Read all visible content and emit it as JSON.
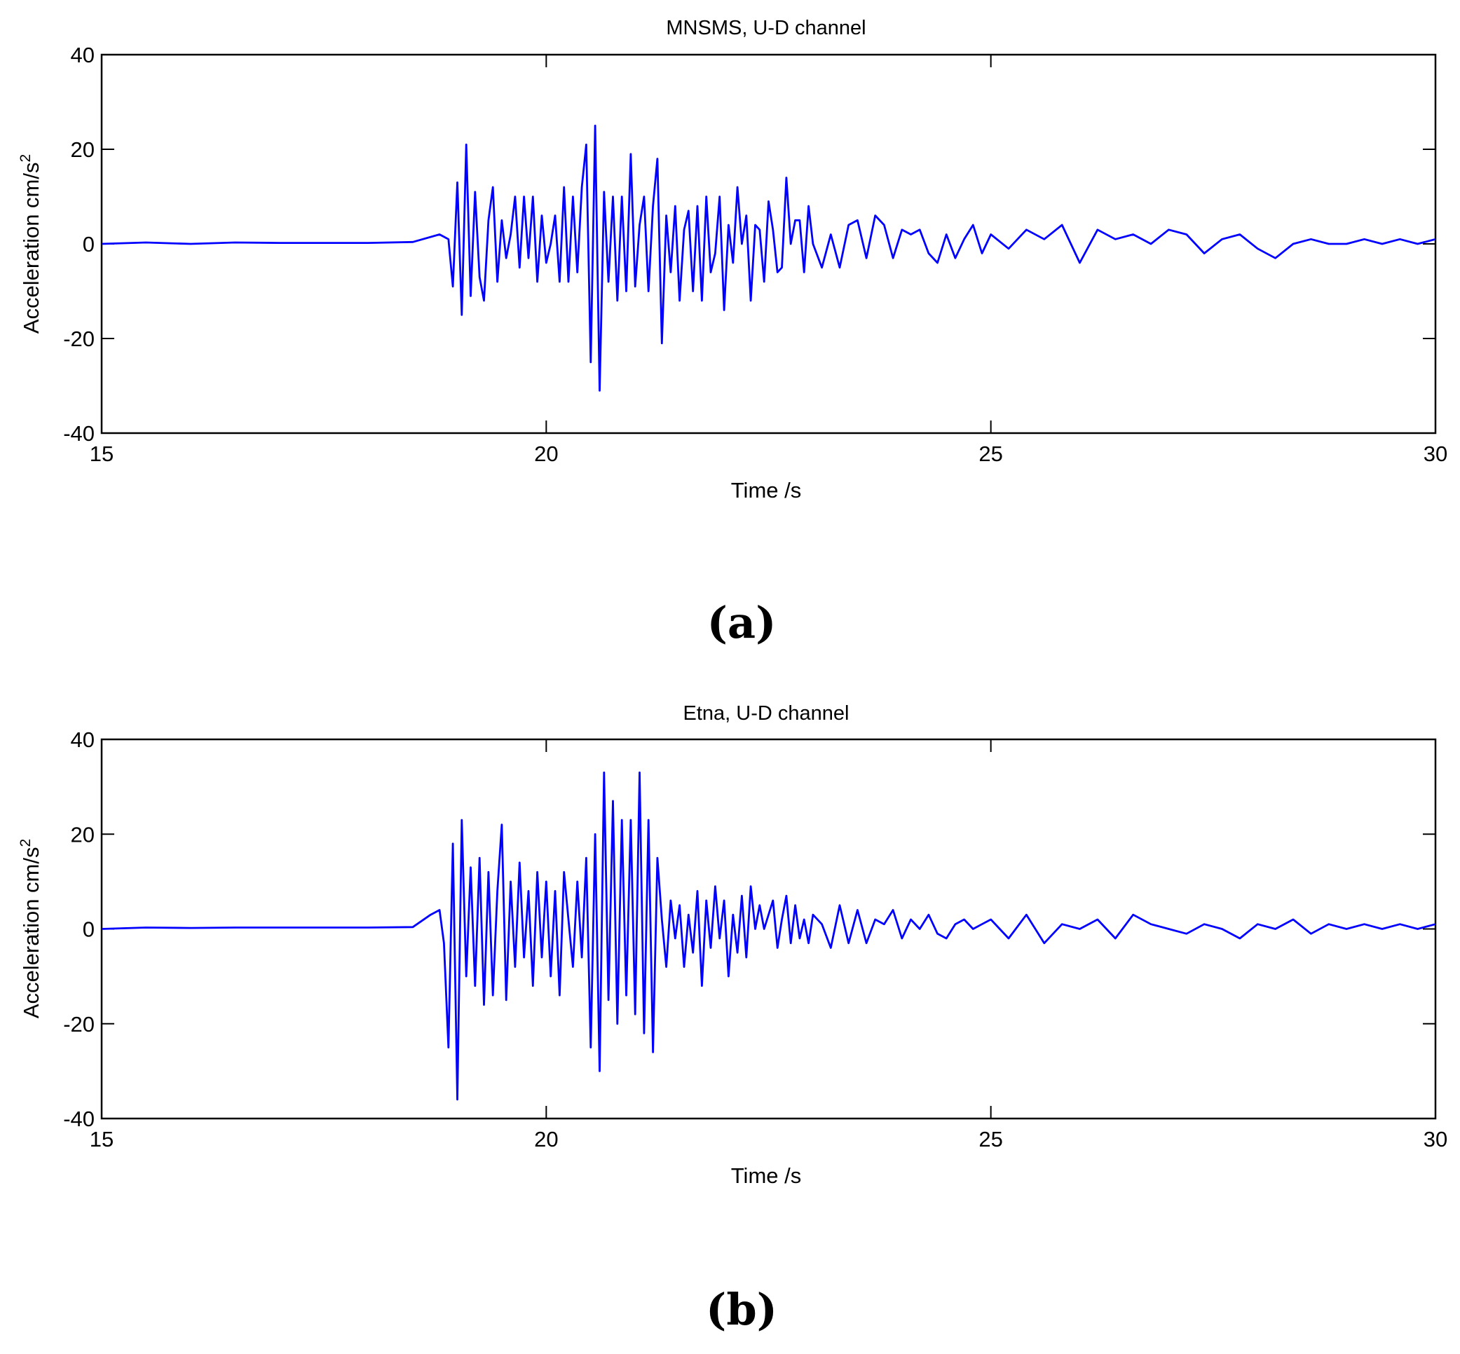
{
  "figure": {
    "trace_color": "#0000FF",
    "panels": [
      {
        "letter_open": "(",
        "letter": "a",
        "letter_close": ")"
      },
      {
        "letter_open": "(",
        "letter": "b",
        "letter_close": ")"
      }
    ]
  },
  "chart_data": [
    {
      "type": "line",
      "title": "MNSMS, U-D channel",
      "xlabel": "Time /s",
      "ylabel_base": "Acceleration cm/s",
      "ylabel_sup": "2",
      "xlim": [
        15,
        30
      ],
      "ylim": [
        -40,
        40
      ],
      "xticks": [
        15,
        20,
        25,
        30
      ],
      "xtick_labels": [
        "15",
        "20",
        "25",
        "30"
      ],
      "yticks": [
        40,
        20,
        0,
        -20,
        -40
      ],
      "ytick_labels": [
        "40",
        "20",
        "0",
        "-20",
        "-40"
      ],
      "grid": false,
      "legend": "none",
      "series": [
        {
          "x": [
            15.0,
            15.5,
            16.0,
            16.5,
            17.0,
            17.5,
            18.0,
            18.5,
            18.8,
            18.9,
            18.95,
            19.0,
            19.05,
            19.1,
            19.15,
            19.2,
            19.25,
            19.3,
            19.35,
            19.4,
            19.45,
            19.5,
            19.55,
            19.6,
            19.65,
            19.7,
            19.75,
            19.8,
            19.85,
            19.9,
            19.95,
            20.0,
            20.05,
            20.1,
            20.15,
            20.2,
            20.25,
            20.3,
            20.35,
            20.4,
            20.45,
            20.5,
            20.55,
            20.6,
            20.65,
            20.7,
            20.75,
            20.8,
            20.85,
            20.9,
            20.95,
            21.0,
            21.05,
            21.1,
            21.15,
            21.2,
            21.25,
            21.3,
            21.35,
            21.4,
            21.45,
            21.5,
            21.55,
            21.6,
            21.65,
            21.7,
            21.75,
            21.8,
            21.85,
            21.9,
            21.95,
            22.0,
            22.05,
            22.1,
            22.15,
            22.2,
            22.25,
            22.3,
            22.35,
            22.4,
            22.45,
            22.5,
            22.55,
            22.6,
            22.65,
            22.7,
            22.75,
            22.8,
            22.85,
            22.9,
            22.95,
            23.0,
            23.1,
            23.2,
            23.3,
            23.4,
            23.5,
            23.6,
            23.7,
            23.8,
            23.9,
            24.0,
            24.1,
            24.2,
            24.3,
            24.4,
            24.5,
            24.6,
            24.7,
            24.8,
            24.9,
            25.0,
            25.2,
            25.4,
            25.6,
            25.8,
            26.0,
            26.2,
            26.4,
            26.6,
            26.8,
            27.0,
            27.2,
            27.4,
            27.6,
            27.8,
            28.0,
            28.2,
            28.4,
            28.6,
            28.8,
            29.0,
            29.2,
            29.4,
            29.6,
            29.8,
            30.0
          ],
          "y": [
            0,
            0.3,
            0,
            0.3,
            0.2,
            0.2,
            0.2,
            0.4,
            2,
            1,
            -9,
            13,
            -15,
            21,
            -11,
            11,
            -7,
            -12,
            5,
            12,
            -8,
            5,
            -3,
            2,
            10,
            -5,
            10,
            -3,
            10,
            -8,
            6,
            -4,
            0,
            6,
            -8,
            12,
            -8,
            10,
            -6,
            12,
            21,
            -25,
            25,
            -31,
            11,
            -8,
            10,
            -12,
            10,
            -10,
            19,
            -9,
            4,
            10,
            -10,
            8,
            18,
            -21,
            6,
            -6,
            8,
            -12,
            3,
            7,
            -10,
            8,
            -12,
            10,
            -6,
            -2,
            10,
            -14,
            4,
            -4,
            12,
            0,
            6,
            -12,
            4,
            3,
            -8,
            9,
            3,
            -6,
            -5,
            14,
            0,
            5,
            5,
            -6,
            8,
            0,
            -5,
            2,
            -5,
            4,
            5,
            -3,
            6,
            4,
            -3,
            3,
            2,
            3,
            -2,
            -4,
            2,
            -3,
            1,
            4,
            -2,
            2,
            -1,
            3,
            1,
            4,
            -4,
            3,
            1,
            2,
            0,
            3,
            2,
            -2,
            1,
            2,
            -1,
            -3,
            0,
            1,
            0,
            0,
            1,
            0,
            1,
            0,
            1
          ]
        }
      ]
    },
    {
      "type": "line",
      "title": "Etna, U-D channel",
      "xlabel": "Time /s",
      "ylabel_base": "Acceleration cm/s",
      "ylabel_sup": "2",
      "xlim": [
        15,
        30
      ],
      "ylim": [
        -40,
        40
      ],
      "xticks": [
        15,
        20,
        25,
        30
      ],
      "xtick_labels": [
        "15",
        "20",
        "25",
        "30"
      ],
      "yticks": [
        40,
        20,
        0,
        -20,
        -40
      ],
      "ytick_labels": [
        "40",
        "20",
        "0",
        "-20",
        "-40"
      ],
      "grid": false,
      "legend": "none",
      "series": [
        {
          "x": [
            15.0,
            15.5,
            16.0,
            16.5,
            17.0,
            17.5,
            18.0,
            18.5,
            18.7,
            18.8,
            18.85,
            18.9,
            18.95,
            19.0,
            19.05,
            19.1,
            19.15,
            19.2,
            19.25,
            19.3,
            19.35,
            19.4,
            19.45,
            19.5,
            19.55,
            19.6,
            19.65,
            19.7,
            19.75,
            19.8,
            19.85,
            19.9,
            19.95,
            20.0,
            20.05,
            20.1,
            20.15,
            20.2,
            20.25,
            20.3,
            20.35,
            20.4,
            20.45,
            20.5,
            20.55,
            20.6,
            20.65,
            20.7,
            20.75,
            20.8,
            20.85,
            20.9,
            20.95,
            21.0,
            21.05,
            21.1,
            21.15,
            21.2,
            21.25,
            21.3,
            21.35,
            21.4,
            21.45,
            21.5,
            21.55,
            21.6,
            21.65,
            21.7,
            21.75,
            21.8,
            21.85,
            21.9,
            21.95,
            22.0,
            22.05,
            22.1,
            22.15,
            22.2,
            22.25,
            22.3,
            22.35,
            22.4,
            22.45,
            22.5,
            22.55,
            22.6,
            22.65,
            22.7,
            22.75,
            22.8,
            22.85,
            22.9,
            22.95,
            23.0,
            23.1,
            23.2,
            23.3,
            23.4,
            23.5,
            23.6,
            23.7,
            23.8,
            23.9,
            24.0,
            24.1,
            24.2,
            24.3,
            24.4,
            24.5,
            24.6,
            24.7,
            24.8,
            24.9,
            25.0,
            25.2,
            25.4,
            25.6,
            25.8,
            26.0,
            26.2,
            26.4,
            26.6,
            26.8,
            27.0,
            27.2,
            27.4,
            27.6,
            27.8,
            28.0,
            28.2,
            28.4,
            28.6,
            28.8,
            29.0,
            29.2,
            29.4,
            29.6,
            29.8,
            30.0
          ],
          "y": [
            0,
            0.3,
            0.2,
            0.3,
            0.3,
            0.3,
            0.3,
            0.4,
            3,
            4,
            -3,
            -25,
            18,
            -36,
            23,
            -10,
            13,
            -12,
            15,
            -16,
            12,
            -14,
            8,
            22,
            -15,
            10,
            -8,
            14,
            -6,
            8,
            -12,
            12,
            -6,
            10,
            -10,
            8,
            -14,
            12,
            2,
            -8,
            10,
            -6,
            15,
            -25,
            20,
            -30,
            33,
            -15,
            27,
            -20,
            23,
            -14,
            23,
            -18,
            33,
            -22,
            23,
            -26,
            15,
            2,
            -8,
            6,
            -2,
            5,
            -8,
            3,
            -5,
            8,
            -12,
            6,
            -4,
            9,
            -2,
            6,
            -10,
            3,
            -5,
            7,
            -6,
            9,
            0,
            5,
            0,
            3,
            6,
            -4,
            2,
            7,
            -3,
            5,
            -2,
            2,
            -3,
            3,
            1,
            -4,
            5,
            -3,
            4,
            -3,
            2,
            1,
            4,
            -2,
            2,
            0,
            3,
            -1,
            -2,
            1,
            2,
            0,
            1,
            2,
            -2,
            3,
            -3,
            1,
            0,
            2,
            -2,
            3,
            1,
            0,
            -1,
            1,
            0,
            -2,
            1,
            0,
            2,
            -1,
            1,
            0,
            1,
            0,
            1,
            0,
            1
          ]
        }
      ]
    }
  ]
}
